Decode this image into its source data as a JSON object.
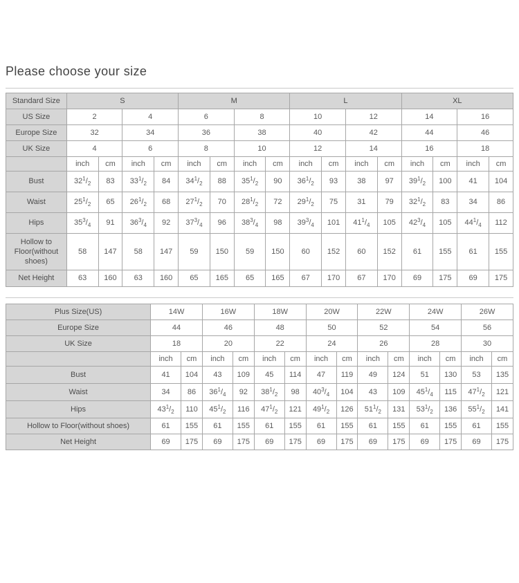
{
  "page": {
    "title": "Please choose your size"
  },
  "colors": {
    "header_bg": "#d6d6d6",
    "cell_bg": "#ffffff",
    "border": "#a6a6a6",
    "text": "#5a5a5a",
    "title_text": "#434343"
  },
  "standard_table": {
    "corner_label": "Standard Size",
    "size_groups": [
      "S",
      "M",
      "L",
      "XL"
    ],
    "size_rows": [
      {
        "label": "US Size",
        "values": [
          "2",
          "4",
          "6",
          "8",
          "10",
          "12",
          "14",
          "16"
        ]
      },
      {
        "label": "Europe Size",
        "values": [
          "32",
          "34",
          "36",
          "38",
          "40",
          "42",
          "44",
          "46"
        ]
      },
      {
        "label": "UK Size",
        "values": [
          "4",
          "6",
          "8",
          "10",
          "12",
          "14",
          "16",
          "18"
        ]
      }
    ],
    "unit_labels": [
      "inch",
      "cm"
    ],
    "measurement_rows": [
      {
        "label": "Bust",
        "values": [
          "32 1/2",
          "83",
          "33 1/2",
          "84",
          "34 1/2",
          "88",
          "35 1/2",
          "90",
          "36 1/2",
          "93",
          "38",
          "97",
          "39 1/2",
          "100",
          "41",
          "104"
        ]
      },
      {
        "label": "Waist",
        "values": [
          "25 1/2",
          "65",
          "26 1/2",
          "68",
          "27 1/2",
          "70",
          "28 1/2",
          "72",
          "29 1/2",
          "75",
          "31",
          "79",
          "32 1/2",
          "83",
          "34",
          "86"
        ]
      },
      {
        "label": "Hips",
        "values": [
          "35 3/4",
          "91",
          "36 3/4",
          "92",
          "37 3/4",
          "96",
          "38 3/4",
          "98",
          "39 3/4",
          "101",
          "41 1/4",
          "105",
          "42 3/4",
          "105",
          "44 1/4",
          "112"
        ]
      },
      {
        "label": "Hollow to Floor(without shoes)",
        "values": [
          "58",
          "147",
          "58",
          "147",
          "59",
          "150",
          "59",
          "150",
          "60",
          "152",
          "60",
          "152",
          "61",
          "155",
          "61",
          "155"
        ]
      },
      {
        "label": "Net Height",
        "values": [
          "63",
          "160",
          "63",
          "160",
          "65",
          "165",
          "65",
          "165",
          "67",
          "170",
          "67",
          "170",
          "69",
          "175",
          "69",
          "175"
        ]
      }
    ]
  },
  "plus_table": {
    "size_rows": [
      {
        "label": "Plus Size(US)",
        "values": [
          "14W",
          "16W",
          "18W",
          "20W",
          "22W",
          "24W",
          "26W"
        ]
      },
      {
        "label": "Europe Size",
        "values": [
          "44",
          "46",
          "48",
          "50",
          "52",
          "54",
          "56"
        ]
      },
      {
        "label": "UK Size",
        "values": [
          "18",
          "20",
          "22",
          "24",
          "26",
          "28",
          "30"
        ]
      }
    ],
    "unit_labels": [
      "inch",
      "cm"
    ],
    "measurement_rows": [
      {
        "label": "Bust",
        "values": [
          "41",
          "104",
          "43",
          "109",
          "45",
          "114",
          "47",
          "119",
          "49",
          "124",
          "51",
          "130",
          "53",
          "135"
        ]
      },
      {
        "label": "Waist",
        "values": [
          "34",
          "86",
          "36 1/4",
          "92",
          "38 1/2",
          "98",
          "40 3/4",
          "104",
          "43",
          "109",
          "45 1/4",
          "115",
          "47 1/2",
          "121"
        ]
      },
      {
        "label": "Hips",
        "values": [
          "43 1/2",
          "110",
          "45 1/2",
          "116",
          "47 1/2",
          "121",
          "49 1/2",
          "126",
          "51 1/2",
          "131",
          "53 1/2",
          "136",
          "55 1/2",
          "141"
        ]
      },
      {
        "label": "Hollow to Floor(without shoes)",
        "values": [
          "61",
          "155",
          "61",
          "155",
          "61",
          "155",
          "61",
          "155",
          "61",
          "155",
          "61",
          "155",
          "61",
          "155"
        ]
      },
      {
        "label": "Net Height",
        "values": [
          "69",
          "175",
          "69",
          "175",
          "69",
          "175",
          "69",
          "175",
          "69",
          "175",
          "69",
          "175",
          "69",
          "175"
        ]
      }
    ]
  }
}
